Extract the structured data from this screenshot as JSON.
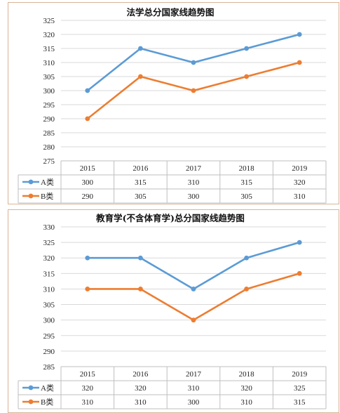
{
  "chart_data": [
    {
      "type": "line",
      "title": "法学总分国家线趋势图",
      "categories": [
        "2015",
        "2016",
        "2017",
        "2018",
        "2019"
      ],
      "series": [
        {
          "name": "A类",
          "values": [
            300,
            315,
            310,
            315,
            320
          ],
          "color": "#5b9bd5"
        },
        {
          "name": "B类",
          "values": [
            290,
            305,
            300,
            305,
            310
          ],
          "color": "#ed7d31"
        }
      ],
      "yticks": [
        275,
        280,
        285,
        290,
        295,
        300,
        305,
        310,
        315,
        320,
        325
      ],
      "ylim": [
        275,
        325
      ],
      "grid": true,
      "legend": "data-table-bottom"
    },
    {
      "type": "line",
      "title": "教育学(不含体育学)总分国家线趋势图",
      "categories": [
        "2015",
        "2016",
        "2017",
        "2018",
        "2019"
      ],
      "series": [
        {
          "name": "A类",
          "values": [
            320,
            320,
            310,
            320,
            325
          ],
          "color": "#5b9bd5"
        },
        {
          "name": "B类",
          "values": [
            310,
            310,
            300,
            310,
            315
          ],
          "color": "#ed7d31"
        }
      ],
      "yticks": [
        285,
        290,
        295,
        300,
        305,
        310,
        315,
        320,
        325,
        330
      ],
      "ylim": [
        285,
        330
      ],
      "grid": true,
      "legend": "data-table-bottom"
    }
  ]
}
